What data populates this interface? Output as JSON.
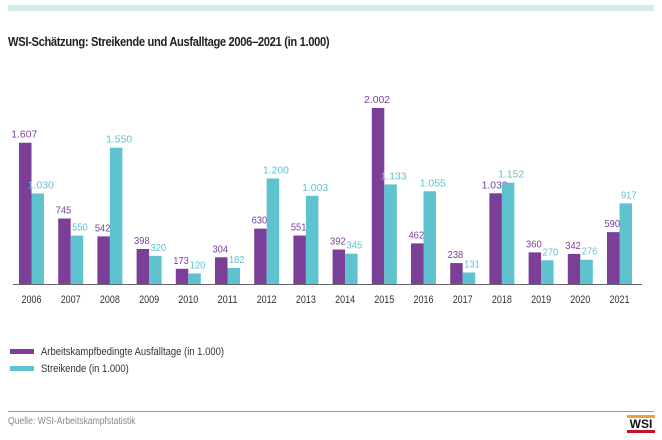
{
  "title": "WSI-Schätzung: Streikende und Ausfalltage 2006–2021 (in 1.000)",
  "source": "Quelle: WSI-Arbeitskampfstatistik",
  "logo": {
    "text": "WSI",
    "top_color": "#e8a33a",
    "bottom_color": "#c8102e"
  },
  "colors": {
    "purple": "#7b3f98",
    "teal": "#5fc2cf",
    "band": "#d6ecec"
  },
  "chart_data": {
    "type": "bar",
    "title": "WSI-Schätzung: Streikende und Ausfalltage 2006–2021 (in 1.000)",
    "xlabel": "",
    "ylabel": "",
    "ylim": [
      0,
      2002
    ],
    "grid": false,
    "legend_position": "bottom-left",
    "categories": [
      "2006",
      "2007",
      "2008",
      "2009",
      "2010",
      "2011",
      "2012",
      "2013",
      "2014",
      "2015",
      "2016",
      "2017",
      "2018",
      "2019",
      "2020",
      "2021"
    ],
    "series": [
      {
        "name": "Arbeitskampfbedingte Ausfalltage (in 1.000)",
        "color": "#7b3f98",
        "values": [
          1607,
          745,
          542,
          398,
          173,
          304,
          630,
          551,
          392,
          2002,
          462,
          238,
          1032,
          360,
          342,
          590
        ],
        "labels": [
          "1.607",
          "745",
          "542",
          "398",
          "173",
          "304",
          "630",
          "551",
          "392",
          "2.002",
          "462",
          "238",
          "1.032",
          "360",
          "342",
          "590"
        ]
      },
      {
        "name": "Streikende (in 1.000)",
        "color": "#5fc2cf",
        "values": [
          1030,
          550,
          1550,
          320,
          120,
          182,
          1200,
          1003,
          345,
          1133,
          1055,
          131,
          1152,
          270,
          276,
          917
        ],
        "labels": [
          "1.030",
          "550",
          "1.550",
          "320",
          "120",
          "182",
          "1.200",
          "1.003",
          "345",
          "1.133",
          "1.055",
          "131",
          "1.152",
          "270",
          "276",
          "917"
        ]
      }
    ]
  }
}
